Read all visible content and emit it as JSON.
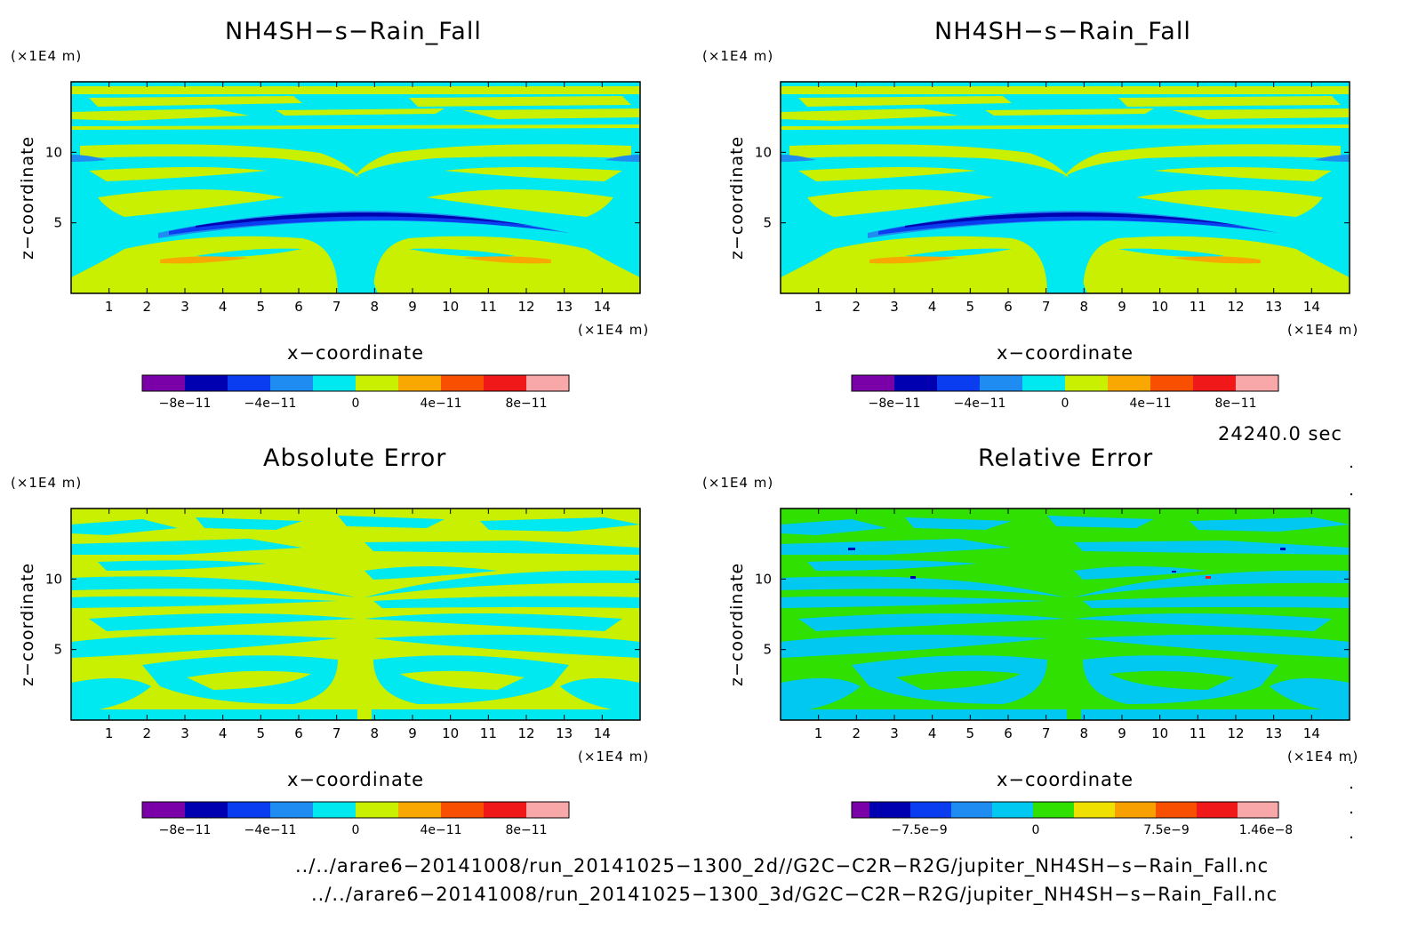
{
  "colors": {
    "levels_main": [
      "#7a00a8",
      "#0000b0",
      "#0a3cf0",
      "#1e8cf0",
      "#00e8f0",
      "#c8f000",
      "#f8a800",
      "#f85000",
      "#f01818",
      "#f8a8a8"
    ],
    "levels_relative": [
      "#7a00a8",
      "#0000b0",
      "#0a3cf0",
      "#1e8cf0",
      "#00c8f0",
      "#30e000",
      "#f0e000",
      "#f8a000",
      "#f85000",
      "#f01818",
      "#f8a8a8"
    ]
  },
  "panels": [
    {
      "title": "NH4SH−s−Rain_Fall",
      "xlabel": "x−coordinate",
      "ylabel": "z−coordinate",
      "xunit": "(×1E4 m)",
      "yunit": "(×1E4 m)",
      "cb_ticks": [
        "−8e−11",
        "−4e−11",
        "0",
        "4e−11",
        "8e−11"
      ]
    },
    {
      "title": "NH4SH−s−Rain_Fall",
      "xlabel": "x−coordinate",
      "ylabel": "z−coordinate",
      "xunit": "(×1E4 m)",
      "yunit": "(×1E4 m)",
      "cb_ticks": [
        "−8e−11",
        "−4e−11",
        "0",
        "4e−11",
        "8e−11"
      ]
    },
    {
      "title": "Absolute Error",
      "xlabel": "x−coordinate",
      "ylabel": "z−coordinate",
      "xunit": "(×1E4 m)",
      "yunit": "(×1E4 m)",
      "cb_ticks": [
        "−8e−11",
        "−4e−11",
        "0",
        "4e−11",
        "8e−11"
      ]
    },
    {
      "title": "Relative Error",
      "xlabel": "x−coordinate",
      "ylabel": "z−coordinate",
      "xunit": "(×1E4 m)",
      "yunit": "(×1E4 m)",
      "cb_ticks": [
        "−7.5e−9",
        "0",
        "7.5e−9",
        "1.46e−8"
      ]
    }
  ],
  "time_label": "24240.0 sec",
  "file_paths": [
    "../../arare6−20141008/run_20141025−1300_2d//G2C−C2R−R2G/jupiter_NH4SH−s−Rain_Fall.nc",
    "../../arare6−20141008/run_20141025−1300_3d/G2C−C2R−R2G/jupiter_NH4SH−s−Rain_Fall.nc"
  ],
  "chart_data": [
    {
      "type": "heatmap",
      "title": "NH4SH−s−Rain_Fall",
      "xlabel": "x−coordinate",
      "ylabel": "z−coordinate",
      "xlim": [
        0,
        15
      ],
      "ylim": [
        0,
        15
      ],
      "x_ticks": [
        1,
        2,
        3,
        4,
        5,
        6,
        7,
        8,
        9,
        10,
        11,
        12,
        13,
        14
      ],
      "y_ticks": [
        5,
        10
      ],
      "levels": [
        -1e-10,
        -8e-11,
        -6e-11,
        -4e-11,
        -2e-11,
        0,
        2e-11,
        4e-11,
        6e-11,
        8e-11,
        1e-10
      ],
      "colorbar_ticks": [
        "−8e−11",
        "−4e−11",
        "0",
        "4e−11",
        "8e−11"
      ]
    },
    {
      "type": "heatmap",
      "title": "NH4SH−s−Rain_Fall",
      "xlabel": "x−coordinate",
      "ylabel": "z−coordinate",
      "xlim": [
        0,
        15
      ],
      "ylim": [
        0,
        15
      ],
      "x_ticks": [
        1,
        2,
        3,
        4,
        5,
        6,
        7,
        8,
        9,
        10,
        11,
        12,
        13,
        14
      ],
      "y_ticks": [
        5,
        10
      ],
      "levels": [
        -1e-10,
        -8e-11,
        -6e-11,
        -4e-11,
        -2e-11,
        0,
        2e-11,
        4e-11,
        6e-11,
        8e-11,
        1e-10
      ],
      "colorbar_ticks": [
        "−8e−11",
        "−4e−11",
        "0",
        "4e−11",
        "8e−11"
      ]
    },
    {
      "type": "heatmap",
      "title": "Absolute Error",
      "xlabel": "x−coordinate",
      "ylabel": "z−coordinate",
      "xlim": [
        0,
        15
      ],
      "ylim": [
        0,
        15
      ],
      "x_ticks": [
        1,
        2,
        3,
        4,
        5,
        6,
        7,
        8,
        9,
        10,
        11,
        12,
        13,
        14
      ],
      "y_ticks": [
        5,
        10
      ],
      "levels": [
        -1e-10,
        -8e-11,
        -6e-11,
        -4e-11,
        -2e-11,
        0,
        2e-11,
        4e-11,
        6e-11,
        8e-11,
        1e-10
      ],
      "colorbar_ticks": [
        "−8e−11",
        "−4e−11",
        "0",
        "4e−11",
        "8e−11"
      ]
    },
    {
      "type": "heatmap",
      "title": "Relative Error",
      "xlabel": "x−coordinate",
      "ylabel": "z−coordinate",
      "xlim": [
        0,
        15
      ],
      "ylim": [
        0,
        15
      ],
      "x_ticks": [
        1,
        2,
        3,
        4,
        5,
        6,
        7,
        8,
        9,
        10,
        11,
        12,
        13,
        14
      ],
      "y_ticks": [
        5,
        10
      ],
      "colorbar_ticks": [
        "−7.5e−9",
        "0",
        "7.5e−9",
        "1.46e−8"
      ]
    }
  ]
}
